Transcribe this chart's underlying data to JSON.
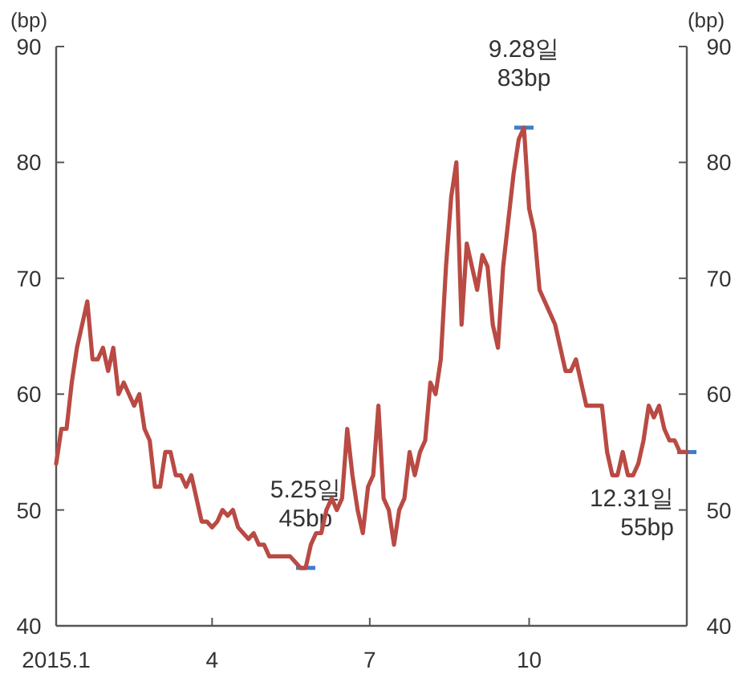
{
  "chart_data": {
    "type": "line",
    "ylabel": "(bp)",
    "y2label": "(bp)",
    "xlim": [
      "2015-01-01",
      "2015-12-31"
    ],
    "xticks": [
      {
        "value": "2015-01-01",
        "label": "2015.1"
      },
      {
        "value": "2015-04-01",
        "label": "4"
      },
      {
        "value": "2015-07-01",
        "label": "7"
      },
      {
        "value": "2015-10-01",
        "label": "10"
      }
    ],
    "ylim": [
      40,
      90
    ],
    "yticks": [
      40,
      50,
      60,
      70,
      80,
      90
    ],
    "y2lim": [
      40,
      90
    ],
    "y2ticks": [
      40,
      50,
      60,
      70,
      80,
      90
    ],
    "grid": false,
    "marker": "none",
    "line_style": "solid",
    "series": [
      {
        "color": "#b94a44",
        "x": [
          "2015-01-01",
          "2015-01-04",
          "2015-01-07",
          "2015-01-10",
          "2015-01-13",
          "2015-01-16",
          "2015-01-19",
          "2015-01-22",
          "2015-01-25",
          "2015-01-28",
          "2015-01-31",
          "2015-02-03",
          "2015-02-06",
          "2015-02-09",
          "2015-02-12",
          "2015-02-15",
          "2015-02-18",
          "2015-02-21",
          "2015-02-24",
          "2015-02-27",
          "2015-03-02",
          "2015-03-05",
          "2015-03-08",
          "2015-03-11",
          "2015-03-14",
          "2015-03-17",
          "2015-03-20",
          "2015-03-23",
          "2015-03-26",
          "2015-03-29",
          "2015-04-01",
          "2015-04-04",
          "2015-04-07",
          "2015-04-10",
          "2015-04-13",
          "2015-04-16",
          "2015-04-19",
          "2015-04-22",
          "2015-04-25",
          "2015-04-28",
          "2015-05-01",
          "2015-05-04",
          "2015-05-07",
          "2015-05-10",
          "2015-05-13",
          "2015-05-16",
          "2015-05-19",
          "2015-05-22",
          "2015-05-25",
          "2015-05-28",
          "2015-05-31",
          "2015-06-03",
          "2015-06-06",
          "2015-06-09",
          "2015-06-12",
          "2015-06-15",
          "2015-06-18",
          "2015-06-21",
          "2015-06-24",
          "2015-06-27",
          "2015-06-30",
          "2015-07-03",
          "2015-07-06",
          "2015-07-09",
          "2015-07-12",
          "2015-07-15",
          "2015-07-18",
          "2015-07-21",
          "2015-07-24",
          "2015-07-27",
          "2015-07-30",
          "2015-08-02",
          "2015-08-05",
          "2015-08-08",
          "2015-08-11",
          "2015-08-14",
          "2015-08-17",
          "2015-08-20",
          "2015-08-23",
          "2015-08-26",
          "2015-08-29",
          "2015-09-01",
          "2015-09-04",
          "2015-09-07",
          "2015-09-10",
          "2015-09-13",
          "2015-09-16",
          "2015-09-19",
          "2015-09-22",
          "2015-09-25",
          "2015-09-28",
          "2015-10-01",
          "2015-10-04",
          "2015-10-07",
          "2015-10-10",
          "2015-10-13",
          "2015-10-16",
          "2015-10-19",
          "2015-10-22",
          "2015-10-25",
          "2015-10-28",
          "2015-10-31",
          "2015-11-03",
          "2015-11-06",
          "2015-11-09",
          "2015-11-12",
          "2015-11-15",
          "2015-11-18",
          "2015-11-21",
          "2015-11-24",
          "2015-11-27",
          "2015-11-30",
          "2015-12-03",
          "2015-12-06",
          "2015-12-09",
          "2015-12-12",
          "2015-12-15",
          "2015-12-18",
          "2015-12-21",
          "2015-12-24",
          "2015-12-27",
          "2015-12-31"
        ],
        "values": [
          54,
          57,
          57,
          61,
          64,
          66,
          68,
          63,
          63,
          64,
          62,
          64,
          60,
          61,
          60,
          59,
          60,
          57,
          56,
          52,
          52,
          55,
          55,
          53,
          53,
          52,
          53,
          51,
          49,
          49,
          48.5,
          49,
          50,
          49.5,
          50,
          48.5,
          48,
          47.5,
          48,
          47,
          47,
          46,
          46,
          46,
          46,
          46,
          45.5,
          45,
          45,
          47,
          48,
          48,
          50,
          51,
          50,
          51,
          57,
          53,
          50,
          48,
          52,
          53,
          59,
          51,
          50,
          47,
          50,
          51,
          55,
          53,
          55,
          56,
          61,
          60,
          63,
          71,
          77,
          80,
          66,
          73,
          71,
          69,
          72,
          71,
          66,
          64,
          71,
          75,
          79,
          82,
          83,
          76,
          74,
          69,
          68,
          67,
          66,
          64,
          62,
          62,
          63,
          61,
          59,
          59,
          59,
          59,
          55,
          53,
          53,
          55,
          53,
          53,
          54,
          56,
          59,
          58,
          59,
          57,
          56,
          56,
          55,
          55
        ]
      }
    ],
    "annotations": [
      {
        "text": "5.25일\n45bp",
        "x": "2015-05-25",
        "y": 45
      },
      {
        "text": "9.28일\n83bp",
        "x": "2015-09-28",
        "y": 83
      },
      {
        "text": "12.31일\n55bp",
        "x": "2015-12-31",
        "y": 55
      }
    ]
  }
}
